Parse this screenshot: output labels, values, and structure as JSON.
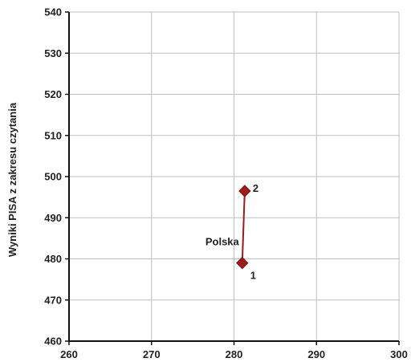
{
  "chart_data": {
    "type": "scatter",
    "title": "",
    "xlabel": "",
    "ylabel": "Wyniki PISA z zakresu czytania",
    "xlim": [
      260,
      300
    ],
    "ylim": [
      460,
      540
    ],
    "x_ticks": [
      "260",
      "270",
      "280",
      "290",
      "300"
    ],
    "y_ticks": [
      "460",
      "470",
      "480",
      "490",
      "500",
      "510",
      "520",
      "530",
      "540"
    ],
    "grid": true,
    "series": [
      {
        "name": "Polska",
        "color": "#9b1c1c",
        "points": [
          {
            "x": 281,
            "y": 479,
            "label": "1"
          },
          {
            "x": 281.3,
            "y": 496.5,
            "label": "2"
          }
        ]
      }
    ]
  }
}
